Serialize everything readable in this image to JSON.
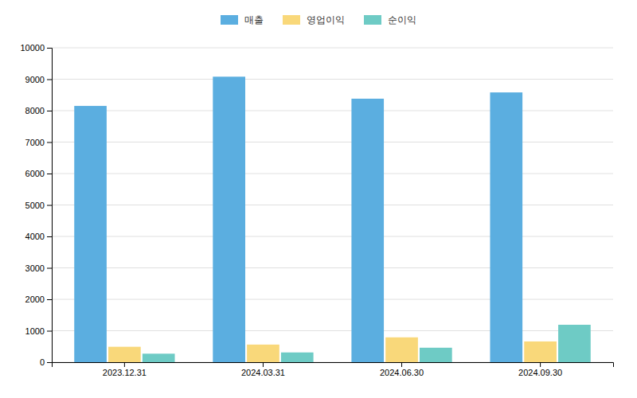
{
  "chart_data": {
    "type": "bar",
    "categories": [
      "2023.12.31",
      "2024.03.31",
      "2024.06.30",
      "2024.09.30"
    ],
    "series": [
      {
        "name": "매출",
        "color": "#5BAEE0",
        "values": [
          8150,
          9080,
          8380,
          8580
        ]
      },
      {
        "name": "영업이익",
        "color": "#F9D87A",
        "values": [
          490,
          560,
          790,
          660
        ]
      },
      {
        "name": "순이익",
        "color": "#6ECBC5",
        "values": [
          270,
          310,
          460,
          1190
        ]
      }
    ],
    "ylim": [
      0,
      10000
    ],
    "yticks": [
      0,
      1000,
      2000,
      3000,
      4000,
      5000,
      6000,
      7000,
      8000,
      9000,
      10000
    ],
    "grid": true,
    "legend": "top"
  }
}
